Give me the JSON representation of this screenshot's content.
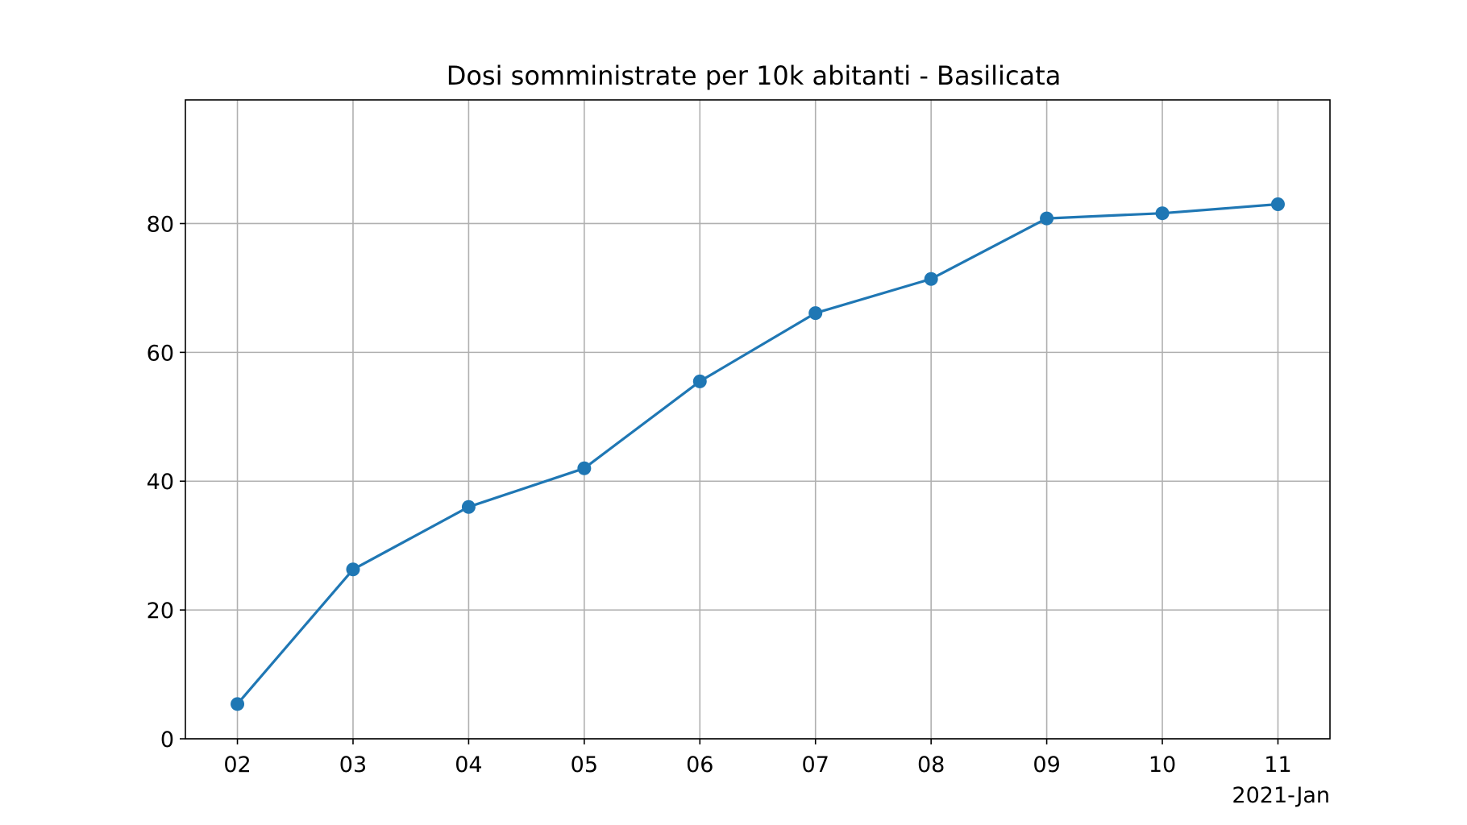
{
  "chart_data": {
    "type": "line",
    "title": "Dosi somministrate per 10k abitanti - Basilicata",
    "xlabel": "",
    "ylabel": "",
    "x_axis_offset_label": "2021-Jan",
    "x": [
      "2021-01-02",
      "2021-01-03",
      "2021-01-04",
      "2021-01-05",
      "2021-01-06",
      "2021-01-07",
      "2021-01-08",
      "2021-01-09",
      "2021-01-10",
      "2021-01-11"
    ],
    "x_tick_labels": [
      "02",
      "03",
      "04",
      "05",
      "06",
      "07",
      "08",
      "09",
      "10",
      "11"
    ],
    "series": [
      {
        "values": [
          5.4,
          26.3,
          36.0,
          42.0,
          55.5,
          66.1,
          71.4,
          80.8,
          81.6,
          83.0
        ],
        "color": "#1f77b4",
        "marker": "circle"
      }
    ],
    "yticks": [
      0,
      20,
      40,
      60,
      80
    ],
    "ylim": [
      0,
      99.2
    ],
    "grid": true,
    "grid_color": "#b0b0b0",
    "axis_color": "#000000"
  }
}
